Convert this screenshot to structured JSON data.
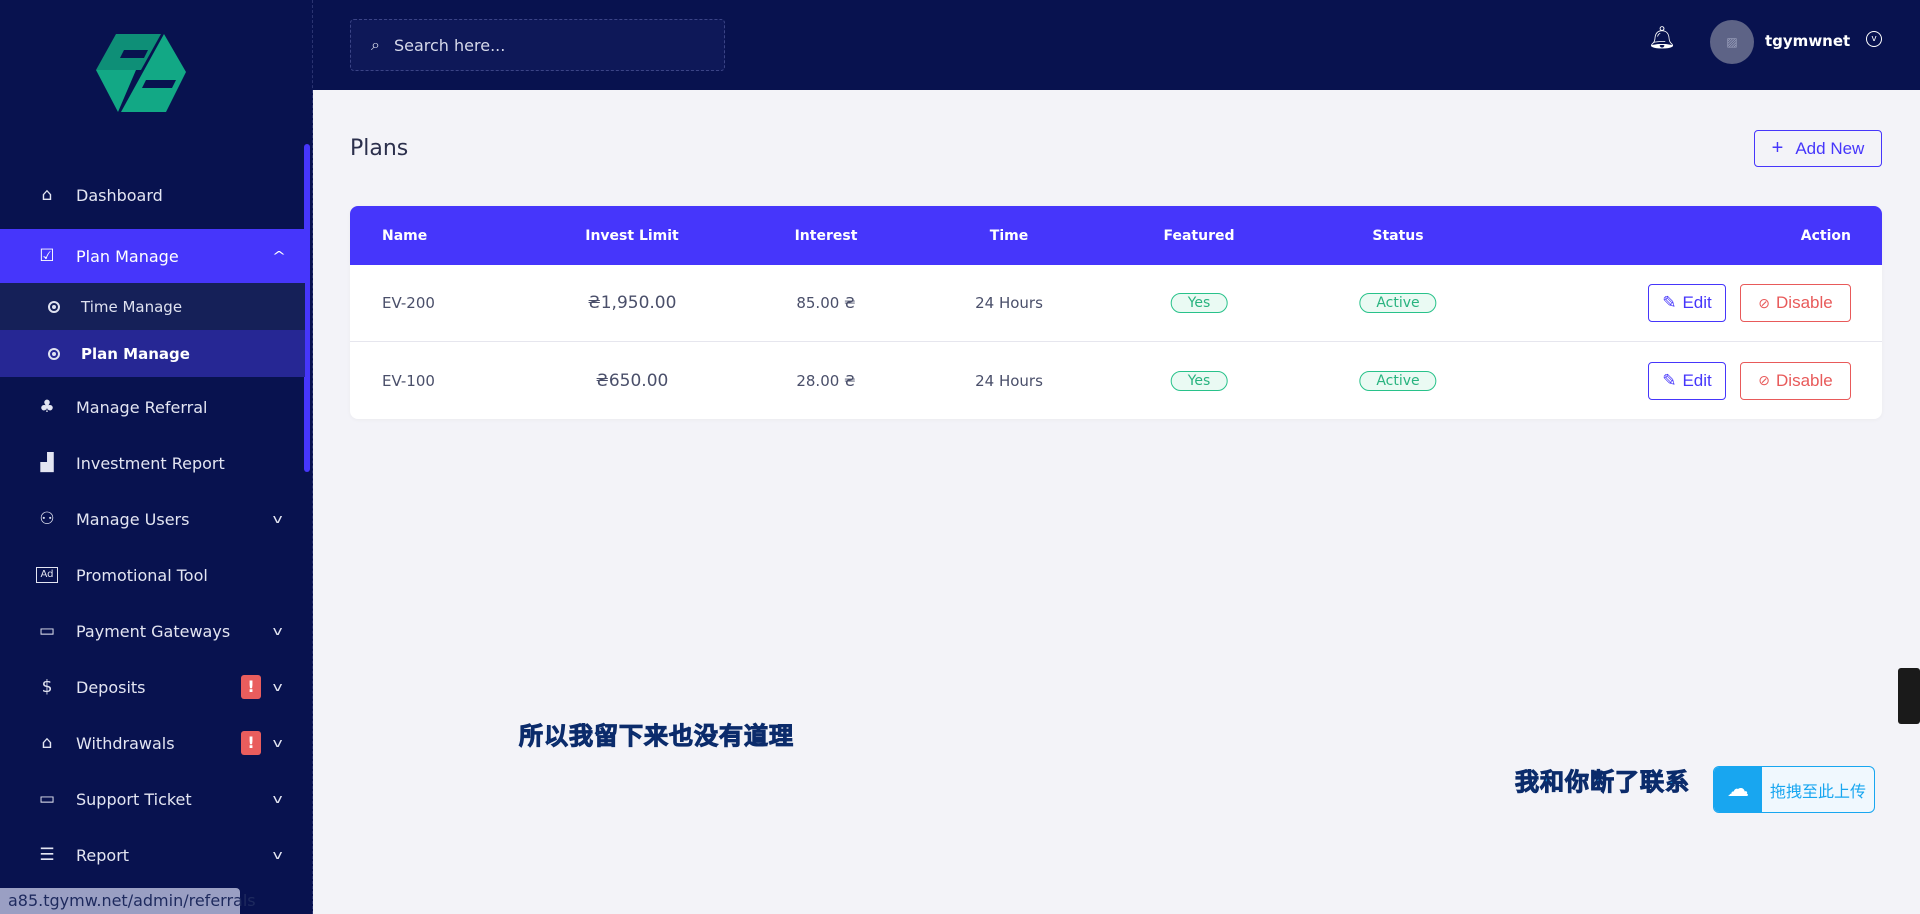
{
  "sidebar": {
    "items": [
      {
        "label": "Dashboard",
        "icon": "home-icon"
      },
      {
        "label": "Plan Manage",
        "icon": "clipboard-check-icon",
        "active": true,
        "expanded": true,
        "children": [
          {
            "label": "Time Manage"
          },
          {
            "label": "Plan Manage",
            "active": true
          }
        ]
      },
      {
        "label": "Manage Referral",
        "icon": "tree-icon"
      },
      {
        "label": "Investment Report",
        "icon": "bar-chart-icon"
      },
      {
        "label": "Manage Users",
        "icon": "users-icon",
        "has_children": true
      },
      {
        "label": "Promotional Tool",
        "icon": "ad-icon"
      },
      {
        "label": "Payment Gateways",
        "icon": "credit-card-icon",
        "has_children": true
      },
      {
        "label": "Deposits",
        "icon": "invoice-dollar-icon",
        "has_children": true,
        "alert": "!"
      },
      {
        "label": "Withdrawals",
        "icon": "bank-icon",
        "has_children": true,
        "alert": "!"
      },
      {
        "label": "Support Ticket",
        "icon": "ticket-icon",
        "has_children": true
      },
      {
        "label": "Report",
        "icon": "list-icon",
        "has_children": true
      }
    ]
  },
  "header": {
    "search_placeholder": "Search here...",
    "username": "tgymwnet"
  },
  "main": {
    "title": "Plans",
    "add_label": "Add New",
    "columns": [
      "Name",
      "Invest Limit",
      "Interest",
      "Time",
      "Featured",
      "Status",
      "Action"
    ],
    "rows": [
      {
        "name": "EV-200",
        "invest_limit": "₴1,950.00",
        "interest": "85.00 ₴",
        "time": "24 Hours",
        "featured": "Yes",
        "status": "Active",
        "edit": "Edit",
        "disable": "Disable"
      },
      {
        "name": "EV-100",
        "invest_limit": "₴650.00",
        "interest": "28.00 ₴",
        "time": "24 Hours",
        "featured": "Yes",
        "status": "Active",
        "edit": "Edit",
        "disable": "Disable"
      }
    ]
  },
  "overlay": {
    "subtitle_1": "所以我留下来也没有道理",
    "subtitle_2": "我和你断了联系",
    "upload_label": "拖拽至此上传"
  },
  "status_url": "a85.tgymw.net/admin/referrals",
  "colors": {
    "sidebar": "#08124f",
    "accent": "#4636fb",
    "success": "#28c28a",
    "danger": "#e85a5a"
  }
}
